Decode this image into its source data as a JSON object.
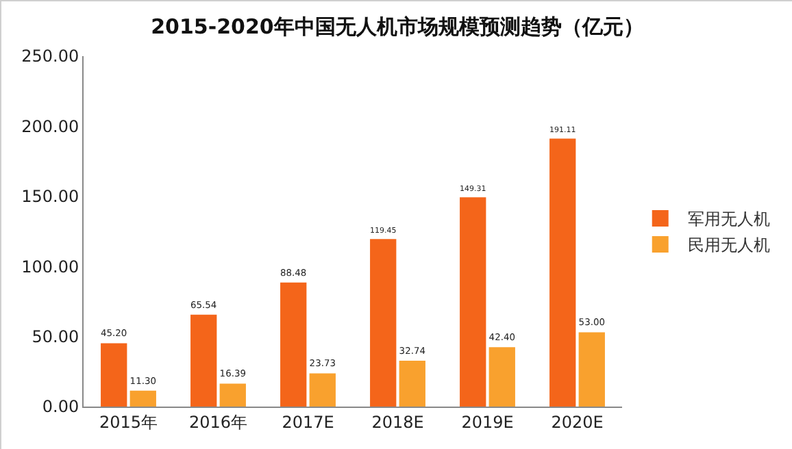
{
  "chart_data": {
    "type": "bar",
    "title": "2015-2020年中国无人机市场规模预测趋势（亿元）",
    "categories": [
      "2015年",
      "2016年",
      "2017E",
      "2018E",
      "2019E",
      "2020E"
    ],
    "series": [
      {
        "name": "军用无人机",
        "color": "#f4651a",
        "values": [
          45.2,
          65.54,
          88.48,
          119.45,
          149.31,
          191.11
        ],
        "value_labels": [
          "45.20",
          "65.54",
          "88.48",
          "119.45",
          "149.31",
          "191.11"
        ]
      },
      {
        "name": "民用无人机",
        "color": "#f9a12e",
        "values": [
          11.3,
          16.39,
          23.73,
          32.74,
          42.4,
          53
        ],
        "value_labels": [
          "11.30",
          "16.39",
          "23.73",
          "32.74",
          "42.40",
          "53.00"
        ]
      }
    ],
    "ylim": [
      0,
      250
    ],
    "yticks": [
      {
        "value": 0,
        "label": "0.00"
      },
      {
        "value": 50,
        "label": "50.00"
      },
      {
        "value": 100,
        "label": "100.00"
      },
      {
        "value": 150,
        "label": "150.00"
      },
      {
        "value": 200,
        "label": "200.00"
      },
      {
        "value": 250,
        "label": "250.00"
      }
    ],
    "grid": false,
    "legend": "right"
  }
}
